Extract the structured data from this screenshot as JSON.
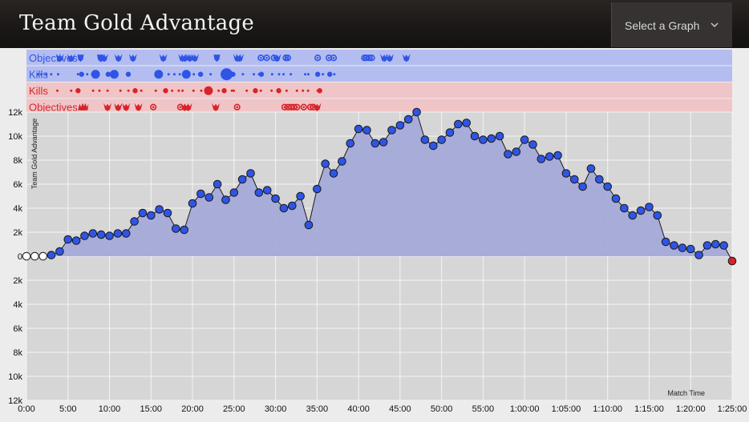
{
  "header": {
    "title": "Team Gold Advantage",
    "graph_select_label": "Select a Graph",
    "graph_select_icon": "chevron-down-icon"
  },
  "colors": {
    "blue": "#2f55e6",
    "red": "#d8232a",
    "blue_lane": "#b4bdf0",
    "red_lane": "#f0c5c7",
    "area_fill": "#a5aad8",
    "plot_bg": "#d6d6d6",
    "header_bg": "#1f1c1b"
  },
  "lanes": [
    {
      "label": "Objectives",
      "team": "blue",
      "kind": "objectives",
      "events": [
        [
          "5:02",
          "dragon"
        ],
        [
          "6:44",
          "dragon"
        ],
        [
          "8:09",
          "herald"
        ],
        [
          "11:07",
          "herald"
        ],
        [
          "11:16",
          "dragon"
        ],
        [
          "11:42",
          "dragon"
        ],
        [
          "13:51",
          "dragon"
        ],
        [
          "16:02",
          "dragon"
        ],
        [
          "20:36",
          "dragon"
        ],
        [
          "23:28",
          "dragon"
        ],
        [
          "23:52",
          "dragon"
        ],
        [
          "24:36",
          "dragon"
        ],
        [
          "25:21",
          "dragon"
        ],
        [
          "28:40",
          "herald"
        ],
        [
          "31:44",
          "dragon"
        ],
        [
          "32:07",
          "dragon"
        ],
        [
          "35:18",
          "tower"
        ],
        [
          "36:10",
          "tower"
        ],
        [
          "37:16",
          "tower"
        ],
        [
          "37:44",
          "dragon"
        ],
        [
          "39:03",
          "tower"
        ],
        [
          "39:21",
          "tower"
        ],
        [
          "43:51",
          "tower"
        ],
        [
          "45:32",
          "tower"
        ],
        [
          "46:15",
          "tower"
        ],
        [
          "50:53",
          "tower"
        ],
        [
          "51:09",
          "tower"
        ],
        [
          "51:38",
          "tower"
        ],
        [
          "51:59",
          "tower"
        ],
        [
          "53:52",
          "dragon"
        ],
        [
          "54:41",
          "dragon"
        ],
        [
          "57:12",
          "dragon"
        ]
      ]
    },
    {
      "label": "Kills",
      "team": "blue",
      "kind": "kills",
      "events": [
        [
          "1:44",
          1
        ],
        [
          "2:15",
          1
        ],
        [
          "2:59",
          1
        ],
        [
          "3:43",
          1
        ],
        [
          "4:46",
          1
        ],
        [
          "7:45",
          1
        ],
        [
          "8:18",
          2
        ],
        [
          "9:09",
          1
        ],
        [
          "9:53",
          1
        ],
        [
          "10:24",
          3
        ],
        [
          "12:18",
          2
        ],
        [
          "12:42",
          1
        ],
        [
          "13:13",
          3
        ],
        [
          "15:20",
          2
        ],
        [
          "19:54",
          3
        ],
        [
          "21:24",
          1
        ],
        [
          "22:16",
          1
        ],
        [
          "23:05",
          1
        ],
        [
          "24:04",
          3
        ],
        [
          "25:12",
          1
        ],
        [
          "26:13",
          2
        ],
        [
          "27:44",
          1
        ],
        [
          "29:38",
          1
        ],
        [
          "30:08",
          4
        ],
        [
          "31:05",
          2
        ],
        [
          "32:35",
          1
        ],
        [
          "34:14",
          1
        ],
        [
          "35:00",
          1
        ],
        [
          "35:22",
          2
        ],
        [
          "36:59",
          1
        ],
        [
          "38:02",
          1
        ],
        [
          "38:42",
          1
        ],
        [
          "39:48",
          1
        ],
        [
          "41:58",
          1
        ],
        [
          "42:26",
          1
        ],
        [
          "43:51",
          2
        ],
        [
          "44:38",
          1
        ],
        [
          "45:40",
          2
        ],
        [
          "46:21",
          1
        ]
      ]
    },
    {
      "label": "Kills",
      "team": "red",
      "kind": "kills",
      "events": [
        [
          "4:39",
          1
        ],
        [
          "6:44",
          1
        ],
        [
          "7:46",
          2
        ],
        [
          "10:02",
          1
        ],
        [
          "10:59",
          1
        ],
        [
          "12:13",
          1
        ],
        [
          "14:09",
          1
        ],
        [
          "15:21",
          1
        ],
        [
          "16:22",
          2
        ],
        [
          "17:17",
          1
        ],
        [
          "19:28",
          1
        ],
        [
          "20:57",
          2
        ],
        [
          "21:56",
          1
        ],
        [
          "22:56",
          1
        ],
        [
          "23:30",
          1
        ],
        [
          "25:09",
          1
        ],
        [
          "26:19",
          1
        ],
        [
          "27:24",
          3
        ],
        [
          "28:56",
          1
        ],
        [
          "29:46",
          2
        ],
        [
          "30:56",
          1
        ],
        [
          "31:13",
          1
        ],
        [
          "33:10",
          1
        ],
        [
          "34:28",
          2
        ],
        [
          "35:17",
          1
        ],
        [
          "36:54",
          1
        ],
        [
          "37:59",
          2
        ],
        [
          "39:10",
          1
        ],
        [
          "40:43",
          1
        ],
        [
          "41:37",
          1
        ],
        [
          "42:24",
          1
        ],
        [
          "43:51",
          1
        ],
        [
          "44:09",
          2
        ]
      ]
    },
    {
      "label": "Objectives",
      "team": "red",
      "kind": "objectives",
      "events": [
        [
          "8:21",
          "baron"
        ],
        [
          "8:44",
          "baron"
        ],
        [
          "12:12",
          "dragon"
        ],
        [
          "13:48",
          "dragon"
        ],
        [
          "15:00",
          "dragon"
        ],
        [
          "16:51",
          "dragon"
        ],
        [
          "19:06",
          "tower"
        ],
        [
          "23:10",
          "tower"
        ],
        [
          "23:50",
          "dragon"
        ],
        [
          "24:21",
          "dragon"
        ],
        [
          "28:30",
          "dragon"
        ],
        [
          "31:43",
          "tower"
        ],
        [
          "38:52",
          "tower"
        ],
        [
          "39:23",
          "tower"
        ],
        [
          "39:51",
          "tower"
        ],
        [
          "40:16",
          "tower"
        ],
        [
          "40:44",
          "tower"
        ],
        [
          "41:45",
          "tower"
        ],
        [
          "42:45",
          "tower"
        ],
        [
          "43:11",
          "tower"
        ],
        [
          "43:46",
          "dragon"
        ]
      ]
    }
  ],
  "chart_data": {
    "type": "line",
    "title": "Team Gold Advantage",
    "ylabel": "Team Gold Advantage",
    "xlabel": "Match Time",
    "x_ticks": [
      "0:00",
      "5:00",
      "10:00",
      "15:00",
      "20:00",
      "25:00",
      "30:00",
      "35:00",
      "40:00",
      "45:00",
      "50:00",
      "55:00",
      "1:00:00",
      "1:05:00",
      "1:10:00",
      "1:15:00",
      "1:20:00",
      "1:25:00"
    ],
    "y_ticks_upper": [
      "12k",
      "10k",
      "8k",
      "6k",
      "4k",
      "2k",
      "0"
    ],
    "y_ticks_lower": [
      "2k",
      "4k",
      "6k",
      "8k",
      "10k",
      "12k"
    ],
    "ylim": [
      -12000,
      12000
    ],
    "xlim_minutes": [
      0,
      85
    ],
    "x_minutes": [
      0,
      1,
      2,
      3,
      4,
      5,
      6,
      7,
      8,
      9,
      10,
      11,
      12,
      13,
      14,
      15,
      16,
      17,
      18,
      19,
      20,
      21,
      22,
      23,
      24,
      25,
      26,
      27,
      28,
      29,
      30,
      31,
      32,
      33,
      34,
      35,
      36,
      37,
      38,
      39,
      40,
      41,
      42,
      43,
      44,
      45,
      46,
      47,
      48,
      49,
      50,
      51,
      52,
      53,
      54,
      55,
      56,
      57,
      58,
      59,
      60,
      61,
      62,
      63,
      64,
      65,
      66,
      67,
      68,
      69,
      70,
      71,
      72,
      73,
      74,
      75,
      76,
      77,
      78,
      79,
      80,
      81,
      82,
      83,
      84,
      85
    ],
    "y_values": [
      0,
      0,
      0,
      100,
      400,
      1400,
      1300,
      1700,
      1900,
      1800,
      1700,
      1900,
      1900,
      2900,
      3600,
      3400,
      3900,
      3600,
      2300,
      2200,
      4400,
      5200,
      4900,
      6000,
      4700,
      5300,
      6400,
      6900,
      5300,
      5500,
      4800,
      4000,
      4200,
      5000,
      2600,
      5600,
      7700,
      6900,
      7900,
      9400,
      10600,
      10500,
      9400,
      9500,
      10500,
      10900,
      11400,
      12000,
      9700,
      9200,
      9700,
      10300,
      11000,
      11100,
      10000,
      9700,
      9800,
      10000,
      8500,
      8700,
      9700,
      9300,
      8100,
      8300,
      8400,
      6900,
      6400,
      5800,
      7300,
      6400,
      5800,
      4800,
      4000,
      3400,
      3800,
      4100,
      3400,
      1200,
      900,
      700,
      600,
      100,
      900,
      1000,
      900,
      -400
    ],
    "marker_color_by_point": [
      "white",
      "white",
      "white",
      "blue",
      "blue",
      "blue",
      "blue",
      "blue",
      "blue",
      "blue",
      "blue",
      "blue",
      "blue",
      "blue",
      "blue",
      "blue",
      "blue",
      "blue",
      "blue",
      "blue",
      "blue",
      "blue",
      "blue",
      "blue",
      "blue",
      "blue",
      "blue",
      "blue",
      "blue",
      "blue",
      "blue",
      "blue",
      "blue",
      "blue",
      "blue",
      "blue",
      "blue",
      "blue",
      "blue",
      "blue",
      "blue",
      "blue",
      "blue",
      "blue",
      "blue",
      "blue",
      "blue",
      "blue",
      "blue",
      "blue",
      "blue",
      "blue",
      "blue",
      "blue",
      "blue",
      "blue",
      "blue",
      "blue",
      "blue",
      "blue",
      "blue",
      "blue",
      "blue",
      "blue",
      "blue",
      "blue",
      "blue",
      "blue",
      "blue",
      "blue",
      "blue",
      "blue",
      "blue",
      "blue",
      "blue",
      "blue",
      "blue",
      "blue",
      "blue",
      "blue",
      "blue",
      "blue",
      "blue",
      "blue",
      "blue",
      "red"
    ]
  }
}
